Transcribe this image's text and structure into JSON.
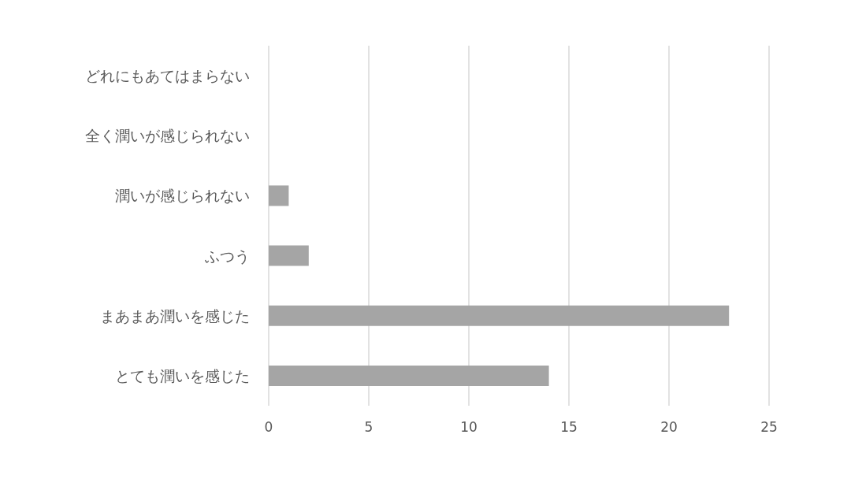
{
  "chart_data": {
    "type": "bar",
    "orientation": "horizontal",
    "categories": [
      "どれにもあてはまらない",
      "全く潤いが感じられない",
      "潤いが感じられない",
      "ふつう",
      "まあまあ潤いを感じた",
      "とても潤いを感じた"
    ],
    "values": [
      0,
      0,
      1,
      2,
      23,
      14
    ],
    "color": "#a5a5a5",
    "xlim": [
      0,
      25
    ],
    "xticks": [
      0,
      5,
      10,
      15,
      20,
      25
    ],
    "grid": "x"
  }
}
